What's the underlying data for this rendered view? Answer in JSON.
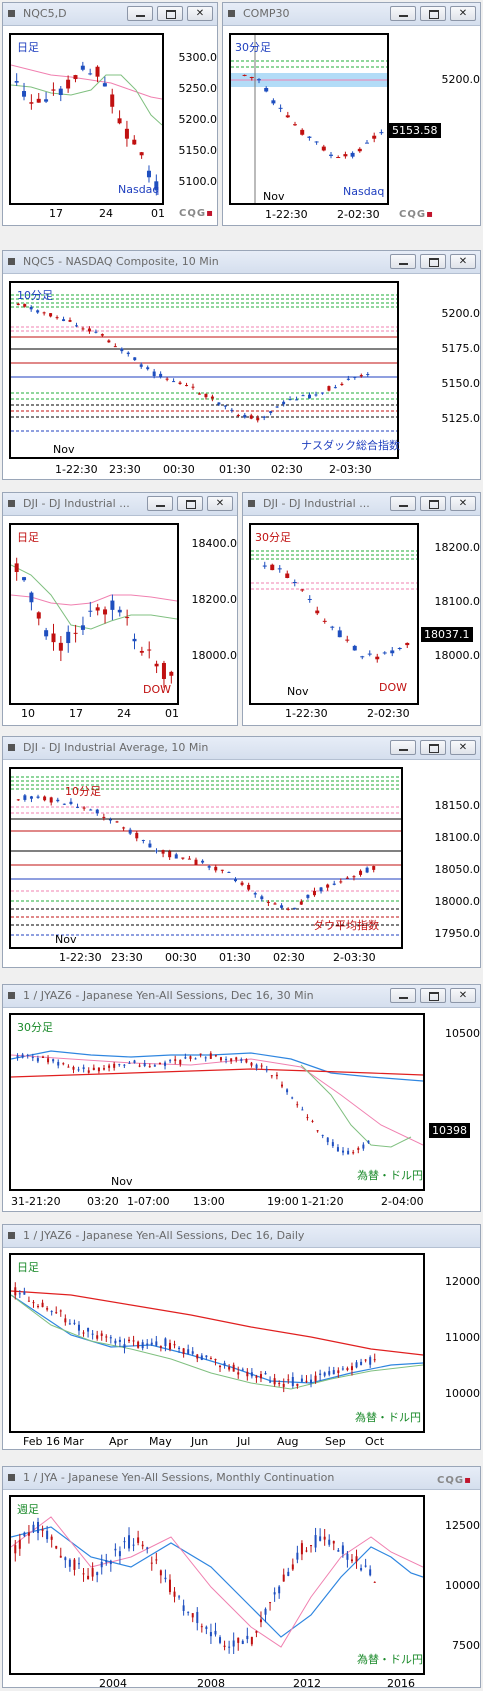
{
  "colors": {
    "up": "#1f4fbf",
    "down": "#c01010",
    "blue_ma": "#2f86e0",
    "red_ma": "#e02020",
    "pink_ma": "#f080b0",
    "green_ma": "#80c080",
    "green_line": "#1fae3a",
    "title_text": "#6a6a6a"
  },
  "windows": [
    {
      "id": "w1",
      "title": "NQC5,D",
      "corner": "日足",
      "corner_color": "#1f3fbf",
      "bottom": "Nasdaq",
      "bottom_color": "#1f3fbf",
      "yticks": [
        "5300.0",
        "5250.0",
        "5200.0",
        "5150.0",
        "5100.0"
      ],
      "xticks": [
        "17",
        "24",
        "01"
      ],
      "logo": "CQG"
    },
    {
      "id": "w2",
      "title": "COMP30",
      "corner": "30分足",
      "corner_color": "#1f3fbf",
      "bottom": "Nasdaq",
      "bottom_color": "#1f3fbf",
      "yticks": [
        "5200.0"
      ],
      "xticks": [
        "1-22:30",
        "2-02:30"
      ],
      "nov": "Nov",
      "price": "5153.58",
      "logo": "CQG"
    },
    {
      "id": "w3",
      "title": "NQC5 - NASDAQ Composite, 10 Min",
      "corner": "10分足",
      "corner_color": "#1f3fbf",
      "bottom": "ナスダック総合指数",
      "bottom_color": "#1f3fbf",
      "yticks": [
        "5200.0",
        "5175.0",
        "5150.0",
        "5125.0"
      ],
      "xticks": [
        "1-22:30",
        "23:30",
        "00:30",
        "01:30",
        "02:30",
        "2-03:30"
      ],
      "nov": "Nov"
    },
    {
      "id": "w4",
      "title": "DJI - DJ Industrial ...",
      "corner": "日足",
      "corner_color": "#c01010",
      "bottom": "DOW",
      "bottom_color": "#c01010",
      "yticks": [
        "18400.0",
        "18200.0",
        "18000.0"
      ],
      "xticks": [
        "10",
        "17",
        "24",
        "01"
      ]
    },
    {
      "id": "w5",
      "title": "DJI - DJ Industrial ...",
      "corner": "30分足",
      "corner_color": "#c01010",
      "bottom": "DOW",
      "bottom_color": "#c01010",
      "yticks": [
        "18200.0",
        "18100.0",
        "18000.0"
      ],
      "xticks": [
        "1-22:30",
        "2-02:30"
      ],
      "nov": "Nov",
      "price": "18037.1"
    },
    {
      "id": "w6",
      "title": "DJI - DJ Industrial Average, 10 Min",
      "corner": "10分足",
      "corner_color": "#c01010",
      "bottom": "ダウ平均指数",
      "bottom_color": "#c01010",
      "yticks": [
        "18150.0",
        "18100.0",
        "18050.0",
        "18000.0",
        "17950.0"
      ],
      "xticks": [
        "1-22:30",
        "23:30",
        "00:30",
        "01:30",
        "02:30",
        "2-03:30"
      ],
      "nov": "Nov"
    },
    {
      "id": "w7",
      "title": "1 / JYAZ6 - Japanese Yen-All Sessions, Dec 16, 30 Min",
      "corner": "30分足",
      "corner_color": "#1a8a2a",
      "bottom": "為替・ドル円",
      "bottom_color": "#1a8a2a",
      "yticks": [
        "10500",
        "10398"
      ],
      "xticks": [
        "31-21:20",
        "03:20",
        "1-07:00",
        "13:00",
        "19:00",
        "1-21:20",
        "2-04:00"
      ],
      "nov": "Nov",
      "price": "10398"
    },
    {
      "id": "w8",
      "title": "1 / JYAZ6 - Japanese Yen-All Sessions, Dec 16, Daily",
      "corner": "日足",
      "corner_color": "#1a8a2a",
      "bottom": "為替・ドル円",
      "bottom_color": "#1a8a2a",
      "yticks": [
        "12000",
        "11000",
        "10000"
      ],
      "xticks": [
        "Feb 16",
        "Mar",
        "Apr",
        "May",
        "Jun",
        "Jul",
        "Aug",
        "Sep",
        "Oct"
      ]
    },
    {
      "id": "w9",
      "title": "1 / JYA - Japanese Yen-All Sessions, Monthly Continuation",
      "corner": "週足",
      "corner_color": "#1a8a2a",
      "bottom": "為替・ドル円",
      "bottom_color": "#1a8a2a",
      "yticks": [
        "12500",
        "10000",
        "7500"
      ],
      "xticks": [
        "2004",
        "2008",
        "2012",
        "2016"
      ],
      "logo": "CQG"
    }
  ]
}
